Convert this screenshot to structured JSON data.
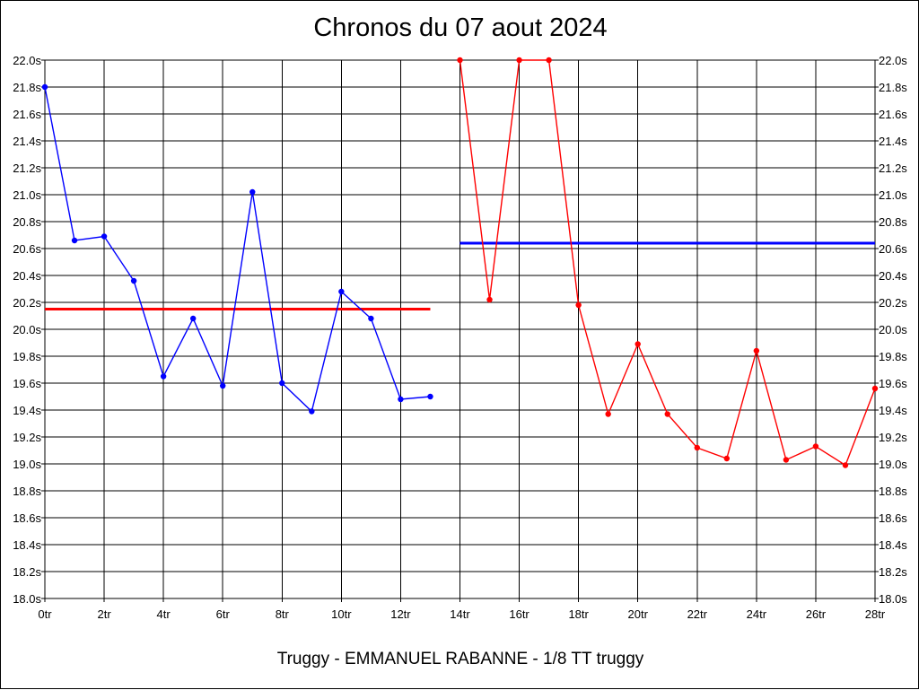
{
  "chart_data": {
    "type": "line",
    "title": "Chronos du 07 aout 2024",
    "caption": "Truggy - EMMANUEL RABANNE - 1/8 TT truggy",
    "xlabel": "",
    "ylabel": "",
    "xlim": [
      0,
      28
    ],
    "ylim": [
      18.0,
      22.0
    ],
    "grid": true,
    "x_ticks": [
      0,
      2,
      4,
      6,
      8,
      10,
      12,
      14,
      16,
      18,
      20,
      22,
      24,
      26,
      28
    ],
    "x_tick_labels": [
      "0tr",
      "2tr",
      "4tr",
      "6tr",
      "8tr",
      "10tr",
      "12tr",
      "14tr",
      "16tr",
      "18tr",
      "20tr",
      "22tr",
      "24tr",
      "26tr",
      "28tr"
    ],
    "y_ticks": [
      18.0,
      18.2,
      18.4,
      18.6,
      18.8,
      19.0,
      19.2,
      19.4,
      19.6,
      19.8,
      20.0,
      20.2,
      20.4,
      20.6,
      20.8,
      21.0,
      21.2,
      21.4,
      21.6,
      21.8,
      22.0
    ],
    "y_tick_labels": [
      "18.0s",
      "18.2s",
      "18.4s",
      "18.6s",
      "18.8s",
      "19.0s",
      "19.2s",
      "19.4s",
      "19.6s",
      "19.8s",
      "20.0s",
      "20.2s",
      "20.4s",
      "20.6s",
      "20.8s",
      "21.0s",
      "21.2s",
      "21.4s",
      "21.6s",
      "21.8s",
      "22.0s"
    ],
    "series": [
      {
        "color": "#0000ff",
        "x": [
          0,
          1,
          2,
          3,
          4,
          5,
          6,
          7,
          8,
          9,
          10,
          11,
          12,
          13
        ],
        "values": [
          21.8,
          20.66,
          20.69,
          20.36,
          19.65,
          20.08,
          19.58,
          21.02,
          19.6,
          19.39,
          20.28,
          20.08,
          19.48,
          19.5
        ]
      },
      {
        "color": "#ff0000",
        "x": [
          14,
          15,
          16,
          17,
          18,
          19,
          20,
          21,
          22,
          23,
          24,
          25,
          26,
          27,
          28
        ],
        "values": [
          22.0,
          20.22,
          22.0,
          22.0,
          20.18,
          19.37,
          19.89,
          19.37,
          19.12,
          19.04,
          19.84,
          19.03,
          19.13,
          18.99,
          19.56
        ]
      }
    ],
    "reference_lines": [
      {
        "color": "#ff0000",
        "x_start": 0,
        "x_end": 13,
        "value": 20.15
      },
      {
        "color": "#0000ff",
        "x_start": 14,
        "x_end": 28,
        "value": 20.64
      }
    ]
  }
}
